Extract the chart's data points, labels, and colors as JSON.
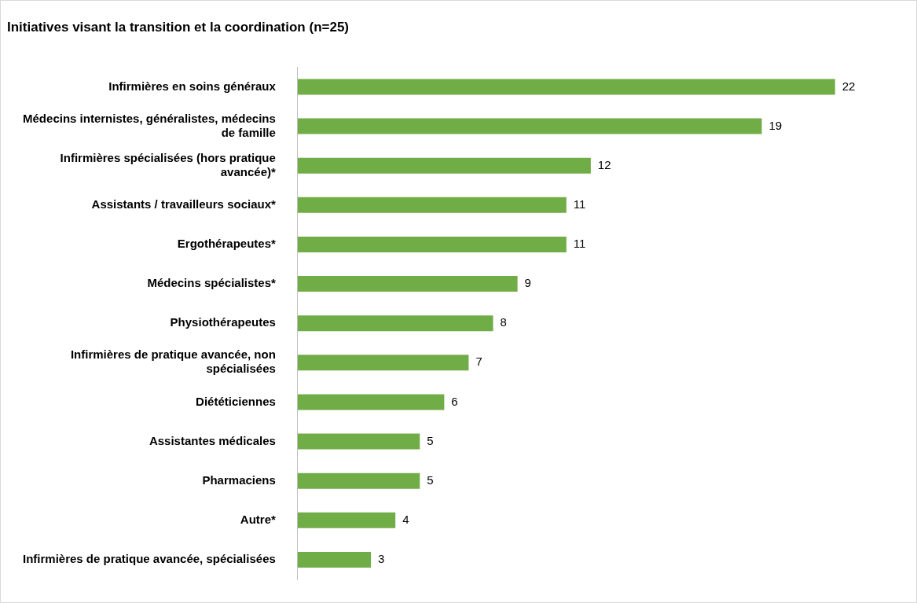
{
  "chart_data": {
    "type": "bar",
    "orientation": "horizontal",
    "title": "Initiatives visant la transition et la coordination (n=25)",
    "categories": [
      "Infirmières en soins généraux",
      "Médecins internistes, généralistes, médecins de famille",
      "Infirmières spécialisées (hors pratique avancée)*",
      "Assistants / travailleurs sociaux*",
      "Ergothérapeutes*",
      "Médecins spécialistes*",
      "Physiothérapeutes",
      "Infirmières de pratique avancée, non spécialisées",
      "Diététiciennes",
      "Assistantes médicales",
      "Pharmaciens",
      "Autre*",
      "Infirmières de pratique avancée, spécialisées"
    ],
    "values": [
      22,
      19,
      12,
      11,
      11,
      9,
      8,
      7,
      6,
      5,
      5,
      4,
      3
    ],
    "color": "#70ad47",
    "data_labels": true,
    "legend": false
  }
}
